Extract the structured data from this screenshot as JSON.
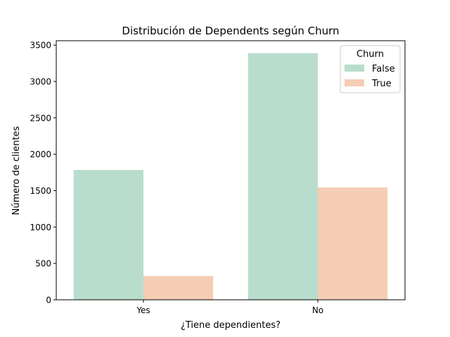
{
  "chart_data": {
    "type": "bar",
    "title": "Distribución de Dependents según Churn",
    "xlabel": "¿Tiene dependientes?",
    "ylabel": "Número de clientes",
    "categories": [
      "Yes",
      "No"
    ],
    "series": [
      {
        "name": "False",
        "values": [
          1784,
          3390
        ],
        "color": "#b9ddcd"
      },
      {
        "name": "True",
        "values": [
          326,
          1543
        ],
        "color": "#f5cdb4"
      }
    ],
    "ylim": [
      0,
      3560
    ],
    "yticks": [
      0,
      500,
      1000,
      1500,
      2000,
      2500,
      3000,
      3500
    ],
    "legend": {
      "title": "Churn",
      "placement": "top-right"
    },
    "grid": false
  }
}
